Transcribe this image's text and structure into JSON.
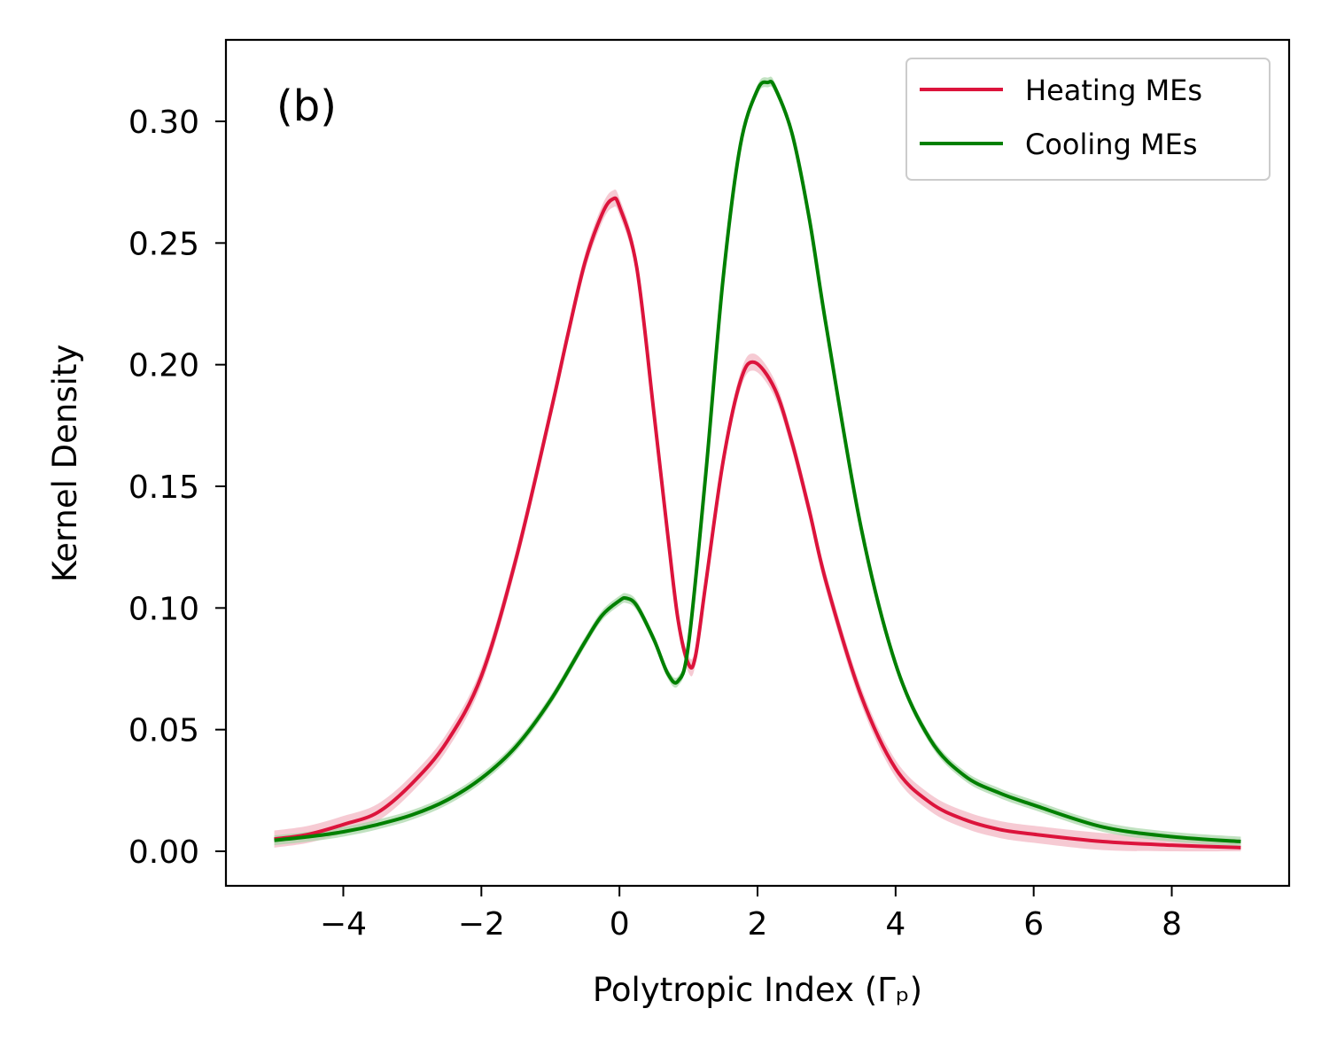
{
  "chart_data": {
    "type": "line",
    "panel_label": "(b)",
    "xlabel": "Polytropic Index (Γₚ)",
    "ylabel": "Kernel Density",
    "xlim": [
      -5.7,
      9.7
    ],
    "ylim": [
      -0.0142,
      0.3335
    ],
    "xticks": [
      -4,
      -2,
      0,
      2,
      4,
      6,
      8
    ],
    "xtick_labels": [
      "−4",
      "−2",
      "0",
      "2",
      "4",
      "6",
      "8"
    ],
    "yticks": [
      0.0,
      0.05,
      0.1,
      0.15,
      0.2,
      0.25,
      0.3
    ],
    "ytick_labels": [
      "0.00",
      "0.05",
      "0.10",
      "0.15",
      "0.20",
      "0.25",
      "0.30"
    ],
    "legend_position": "upper right",
    "series": [
      {
        "name": "Heating MEs",
        "color": "#DC143C",
        "band_color": "#F2B3C0",
        "x": [
          -5.0,
          -4.5,
          -4.0,
          -3.5,
          -3.0,
          -2.5,
          -2.0,
          -1.5,
          -1.0,
          -0.75,
          -0.5,
          -0.25,
          -0.1,
          0.0,
          0.25,
          0.5,
          0.7,
          0.85,
          1.0,
          1.1,
          1.25,
          1.5,
          1.75,
          1.95,
          2.25,
          2.5,
          2.75,
          3.0,
          3.5,
          4.0,
          4.5,
          5.0,
          5.5,
          6.0,
          7.0,
          8.0,
          9.0
        ],
        "y": [
          0.005,
          0.007,
          0.011,
          0.016,
          0.028,
          0.045,
          0.072,
          0.12,
          0.18,
          0.212,
          0.242,
          0.262,
          0.268,
          0.265,
          0.24,
          0.18,
          0.13,
          0.095,
          0.077,
          0.08,
          0.11,
          0.16,
          0.193,
          0.201,
          0.19,
          0.168,
          0.14,
          0.11,
          0.064,
          0.034,
          0.02,
          0.013,
          0.009,
          0.007,
          0.004,
          0.0025,
          0.0015
        ],
        "band": 0.0035
      },
      {
        "name": "Cooling MEs",
        "color": "#008000",
        "band_color": "#A6D5A6",
        "x": [
          -5.0,
          -4.5,
          -4.0,
          -3.5,
          -3.0,
          -2.5,
          -2.0,
          -1.5,
          -1.0,
          -0.5,
          -0.25,
          0.0,
          0.1,
          0.25,
          0.5,
          0.7,
          0.85,
          1.0,
          1.25,
          1.5,
          1.75,
          2.0,
          2.15,
          2.25,
          2.5,
          2.75,
          3.0,
          3.5,
          4.0,
          4.5,
          5.0,
          5.5,
          6.0,
          7.0,
          8.0,
          9.0
        ],
        "y": [
          0.0045,
          0.006,
          0.008,
          0.011,
          0.015,
          0.021,
          0.03,
          0.043,
          0.062,
          0.086,
          0.097,
          0.103,
          0.104,
          0.101,
          0.087,
          0.073,
          0.07,
          0.085,
          0.155,
          0.235,
          0.29,
          0.313,
          0.316,
          0.314,
          0.295,
          0.26,
          0.215,
          0.133,
          0.077,
          0.046,
          0.031,
          0.024,
          0.019,
          0.01,
          0.006,
          0.004
        ],
        "band": 0.002
      }
    ]
  }
}
